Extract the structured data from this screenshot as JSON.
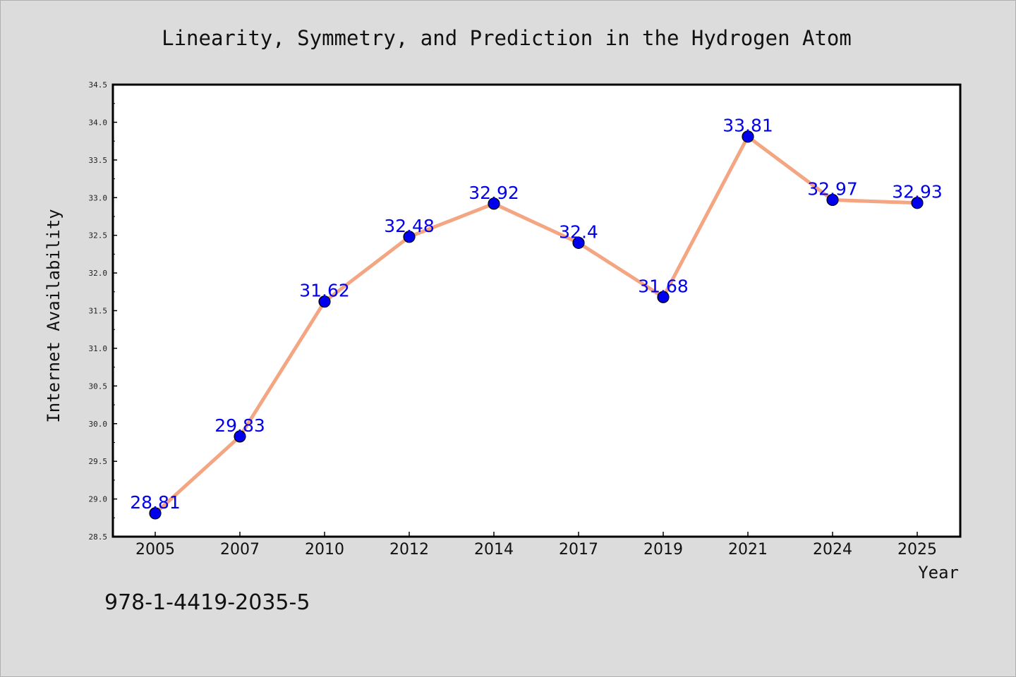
{
  "chart_data": {
    "type": "line",
    "title": "Linearity, Symmetry, and Prediction in the Hydrogen Atom",
    "xlabel": "Year",
    "ylabel": "Internet Availability",
    "categories": [
      "2005",
      "2007",
      "2010",
      "2012",
      "2014",
      "2017",
      "2019",
      "2021",
      "2024",
      "2025"
    ],
    "series": [
      {
        "values": [
          28.81,
          29.83,
          31.62,
          32.48,
          32.92,
          32.4,
          31.68,
          33.81,
          32.97,
          32.93
        ],
        "labels": [
          "28.81",
          "29.83",
          "31.62",
          "32.48",
          "32.92",
          "32.4",
          "31.68",
          "33.81",
          "32.97",
          "32.93"
        ],
        "line_color": "#f4a582",
        "marker_color": "#0000ee"
      }
    ],
    "ylim": [
      28.5,
      34.5
    ],
    "yticks": [
      "28.5",
      "29.0",
      "29.5",
      "30.0",
      "30.5",
      "31.0",
      "31.5",
      "32.0",
      "32.5",
      "33.0",
      "33.5",
      "34.0",
      "34.5"
    ],
    "grid": false,
    "legend": "none"
  },
  "footer_text": "978-1-4419-2035-5",
  "colors": {
    "background": "#dcdcdc",
    "plot_background": "#ffffff",
    "label_color": "#0000ee"
  }
}
